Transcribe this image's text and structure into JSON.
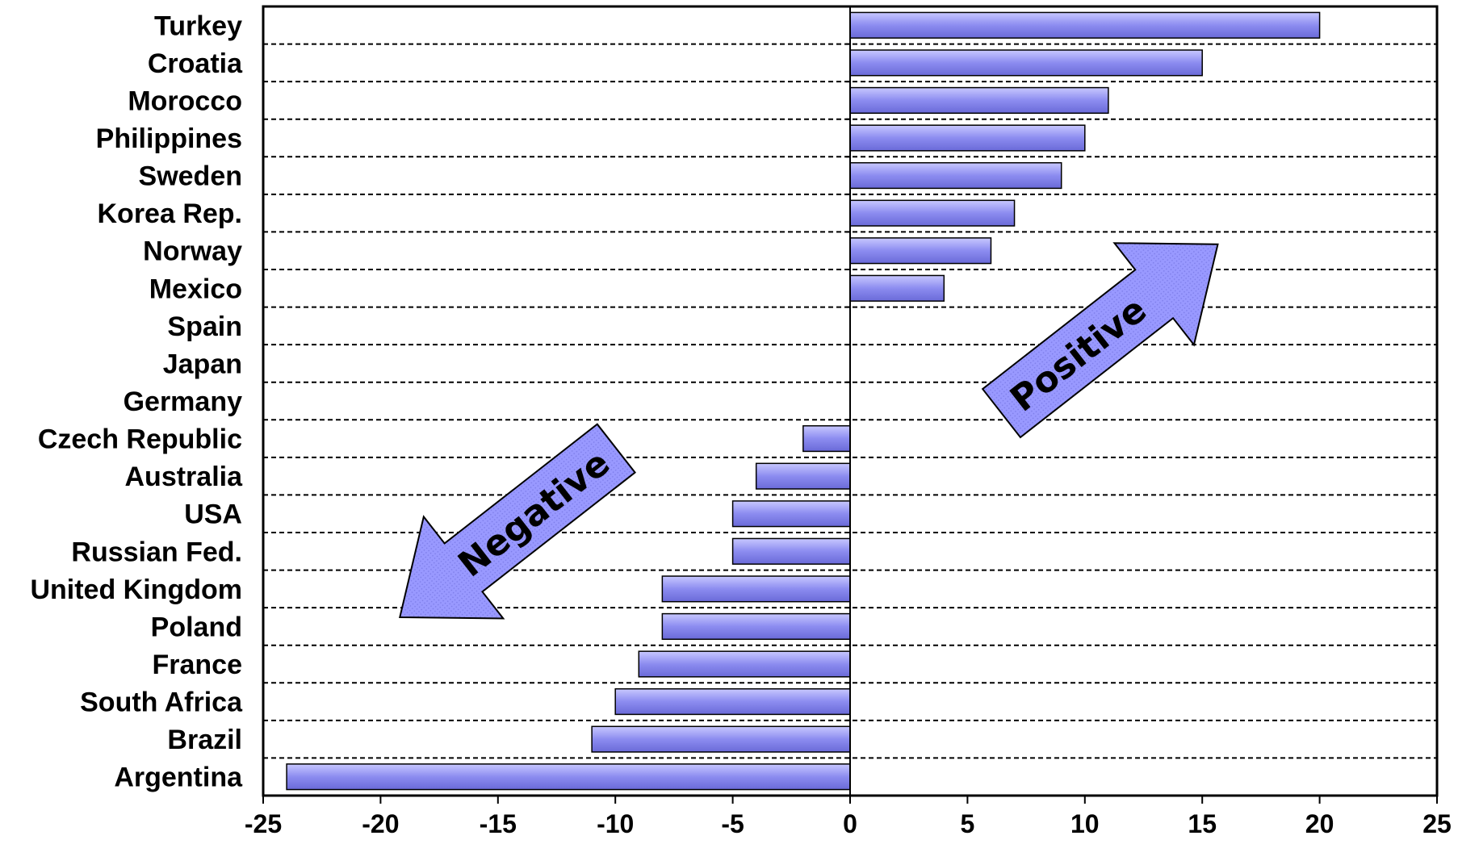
{
  "chart_data": {
    "type": "bar",
    "orientation": "horizontal",
    "categories": [
      "Turkey",
      "Croatia",
      "Morocco",
      "Philippines",
      "Sweden",
      "Korea Rep.",
      "Norway",
      "Mexico",
      "Spain",
      "Japan",
      "Germany",
      "Czech Republic",
      "Australia",
      "USA",
      "Russian Fed.",
      "United Kingdom",
      "Poland",
      "France",
      "South Africa",
      "Brazil",
      "Argentina"
    ],
    "values": [
      20,
      15,
      11,
      10,
      9,
      7,
      6,
      4,
      0,
      0,
      0,
      -2,
      -4,
      -5,
      -5,
      -8,
      -8,
      -9,
      -10,
      -11,
      -24
    ],
    "xlim": [
      -25,
      25
    ],
    "xticks": [
      "-25",
      "-20",
      "-15",
      "-10",
      "-5",
      "0",
      "5",
      "10",
      "15",
      "20",
      "25"
    ],
    "grid": "dashed horizontal",
    "bar_color": "#9999ff",
    "annotations": [
      {
        "label": "Positive",
        "direction": "up-right",
        "color": "#9999ff"
      },
      {
        "label": "Negative",
        "direction": "down-left",
        "color": "#9999ff"
      }
    ]
  }
}
